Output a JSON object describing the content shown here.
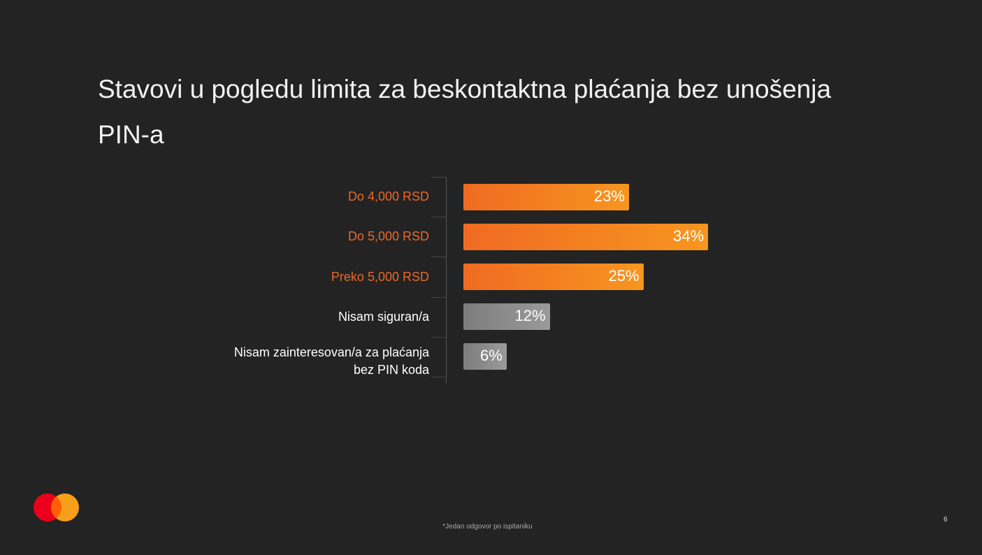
{
  "chart_data": {
    "type": "bar",
    "orientation": "horizontal",
    "title": "Stavovi u pogledu limita za beskontaktna plaćanja bez unošenja PIN-a",
    "categories": [
      "Do 4,000 RSD",
      "Do 5,000 RSD",
      "Preko 5,000 RSD",
      "Nisam siguran/a",
      "Nisam zainteresovan/a za plaćanja bez PIN koda"
    ],
    "values": [
      23,
      34,
      25,
      12,
      6
    ],
    "value_labels": [
      "23%",
      "34%",
      "25%",
      "12%",
      "6%"
    ],
    "colors": [
      [
        "#f06a22",
        "#f7961f"
      ],
      [
        "#f06a22",
        "#f7961f"
      ],
      [
        "#f06a22",
        "#f7961f"
      ],
      [
        "#7d7d7d",
        "#9a9a9a"
      ],
      [
        "#7d7d7d",
        "#9a9a9a"
      ]
    ],
    "label_colors": [
      "#e8692a",
      "#e8692a",
      "#e8692a",
      "#ffffff",
      "#ffffff"
    ],
    "footnote": "*Jedan odgovor po ispitaniku",
    "page_number": "6"
  }
}
